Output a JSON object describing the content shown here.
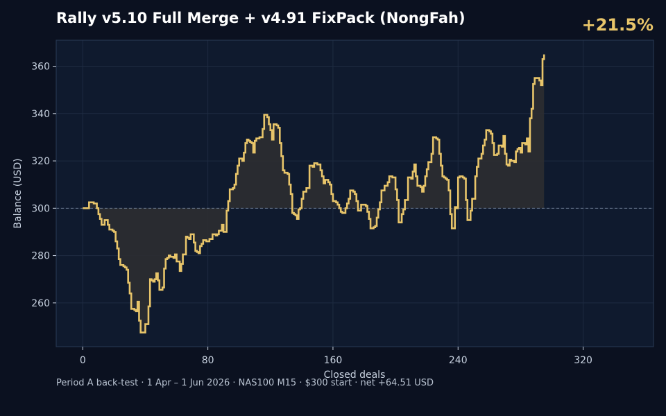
{
  "title": "Rally v5.10 Full Merge + v4.91 FixPack (NongFah)",
  "badge": "+21.5%",
  "footer": "Period A back-test  ·  1 Apr – 1 Jun 2026  ·  NAS100 M15  ·  $300 start  ·  net +64.51 USD",
  "colors": {
    "background": "#0b1120",
    "plot_background": "#0f1a2e",
    "line": "#e8c56a",
    "fill": "#2b2d31",
    "grid": "#1e2b41",
    "baseline": "#6b7a90",
    "text": "#c8d2e0"
  },
  "chart_data": {
    "type": "line",
    "step": true,
    "xlabel": "Closed deals",
    "ylabel": "Balance (USD)",
    "xlim": [
      -17,
      365
    ],
    "ylim": [
      241.5,
      371
    ],
    "xticks": [
      0,
      80,
      160,
      240,
      320
    ],
    "yticks": [
      260,
      280,
      300,
      320,
      340,
      360
    ],
    "baseline": 300,
    "grid": true,
    "series": [
      {
        "points": [
          [
            0,
            300
          ],
          [
            3,
            300
          ],
          [
            4,
            302.5
          ],
          [
            7,
            302
          ],
          [
            9,
            300
          ],
          [
            10,
            297.5
          ],
          [
            11,
            295.5
          ],
          [
            12,
            293
          ],
          [
            14,
            295
          ],
          [
            15,
            295
          ],
          [
            16,
            293
          ],
          [
            17,
            291
          ],
          [
            19,
            290.5
          ],
          [
            20,
            290
          ],
          [
            21,
            286
          ],
          [
            22,
            283
          ],
          [
            23,
            278.5
          ],
          [
            24,
            276
          ],
          [
            26,
            275.5
          ],
          [
            27,
            275
          ],
          [
            28,
            274
          ],
          [
            29,
            268.5
          ],
          [
            30,
            264
          ],
          [
            31,
            257.5
          ],
          [
            33,
            257
          ],
          [
            34,
            256.5
          ],
          [
            35,
            260.5
          ],
          [
            36,
            252.5
          ],
          [
            37,
            247.5
          ],
          [
            39,
            247.5
          ],
          [
            40,
            251
          ],
          [
            41,
            251
          ],
          [
            42,
            258.5
          ],
          [
            43,
            270
          ],
          [
            44,
            269.5
          ],
          [
            45,
            269
          ],
          [
            46,
            270
          ],
          [
            47,
            272.5
          ],
          [
            48,
            269.5
          ],
          [
            49,
            265.5
          ],
          [
            50,
            265.5
          ],
          [
            51,
            266.5
          ],
          [
            52,
            274.5
          ],
          [
            53,
            278.5
          ],
          [
            54,
            279
          ],
          [
            55,
            280
          ],
          [
            56,
            279.5
          ],
          [
            57,
            279.5
          ],
          [
            58,
            279
          ],
          [
            59,
            280.5
          ],
          [
            60,
            277.5
          ],
          [
            62,
            273.5
          ],
          [
            63,
            276.5
          ],
          [
            64,
            280.5
          ],
          [
            65,
            280.5
          ],
          [
            66,
            288
          ],
          [
            67,
            287.5
          ],
          [
            68,
            287
          ],
          [
            69,
            289
          ],
          [
            70,
            289
          ],
          [
            71,
            285.5
          ],
          [
            72,
            282
          ],
          [
            73,
            281.5
          ],
          [
            74,
            281
          ],
          [
            75,
            284
          ],
          [
            76,
            285
          ],
          [
            77,
            286.5
          ],
          [
            79,
            286
          ],
          [
            80,
            286
          ],
          [
            81,
            287
          ],
          [
            82,
            287
          ],
          [
            83,
            289
          ],
          [
            85,
            288.5
          ],
          [
            86,
            289
          ],
          [
            87,
            290.5
          ],
          [
            89,
            293
          ],
          [
            90,
            290
          ],
          [
            91,
            290
          ],
          [
            92,
            299
          ],
          [
            93,
            303
          ],
          [
            94,
            308
          ],
          [
            96,
            308.5
          ],
          [
            97,
            310
          ],
          [
            98,
            314.5
          ],
          [
            99,
            318
          ],
          [
            100,
            321
          ],
          [
            102,
            320
          ],
          [
            103,
            323.5
          ],
          [
            104,
            327.5
          ],
          [
            105,
            329
          ],
          [
            106,
            328.5
          ],
          [
            107,
            328
          ],
          [
            108,
            327.5
          ],
          [
            109,
            323.5
          ],
          [
            110,
            328.5
          ],
          [
            111,
            329.5
          ],
          [
            113,
            330
          ],
          [
            115,
            333.5
          ],
          [
            116,
            339.5
          ],
          [
            118,
            338.5
          ],
          [
            119,
            335.5
          ],
          [
            120,
            333
          ],
          [
            121,
            329
          ],
          [
            122,
            335.5
          ],
          [
            124,
            335
          ],
          [
            125,
            334
          ],
          [
            126,
            327.5
          ],
          [
            127,
            322
          ],
          [
            128,
            316
          ],
          [
            129,
            315
          ],
          [
            130,
            315
          ],
          [
            131,
            314.5
          ],
          [
            132,
            310
          ],
          [
            133,
            306
          ],
          [
            134,
            298
          ],
          [
            135,
            297.5
          ],
          [
            136,
            297
          ],
          [
            137,
            295.5
          ],
          [
            138,
            299.5
          ],
          [
            139,
            300
          ],
          [
            140,
            304
          ],
          [
            141,
            307
          ],
          [
            142,
            307
          ],
          [
            143,
            308.5
          ],
          [
            144,
            308.5
          ],
          [
            145,
            318
          ],
          [
            147,
            317.5
          ],
          [
            148,
            319
          ],
          [
            150,
            318.5
          ],
          [
            152,
            316
          ],
          [
            153,
            313.5
          ],
          [
            154,
            310.5
          ],
          [
            155,
            312
          ],
          [
            157,
            311
          ],
          [
            158,
            310
          ],
          [
            159,
            306
          ],
          [
            160,
            303
          ],
          [
            162,
            302.5
          ],
          [
            163,
            301.5
          ],
          [
            164,
            300
          ],
          [
            165,
            298.5
          ],
          [
            166,
            298
          ],
          [
            168,
            300
          ],
          [
            169,
            302
          ],
          [
            170,
            304
          ],
          [
            171,
            307.5
          ],
          [
            173,
            307
          ],
          [
            174,
            306
          ],
          [
            175,
            303
          ],
          [
            176,
            299
          ],
          [
            178,
            301.5
          ],
          [
            181,
            301
          ],
          [
            182,
            298.5
          ],
          [
            183,
            295.5
          ],
          [
            184,
            291.5
          ],
          [
            186,
            292
          ],
          [
            187,
            292.5
          ],
          [
            188,
            296
          ],
          [
            189,
            299.5
          ],
          [
            190,
            302.5
          ],
          [
            191,
            307.5
          ],
          [
            193,
            309.5
          ],
          [
            194,
            309.5
          ],
          [
            195,
            311
          ],
          [
            196,
            313.5
          ],
          [
            198,
            313
          ],
          [
            199,
            313
          ],
          [
            200,
            308
          ],
          [
            201,
            303.5
          ],
          [
            202,
            294
          ],
          [
            204,
            297.5
          ],
          [
            205,
            299.5
          ],
          [
            206,
            303.5
          ],
          [
            208,
            313
          ],
          [
            210,
            312.5
          ],
          [
            211,
            315.5
          ],
          [
            212,
            318.5
          ],
          [
            213,
            313.5
          ],
          [
            214,
            309.5
          ],
          [
            216,
            309
          ],
          [
            217,
            307
          ],
          [
            218,
            309.5
          ],
          [
            219,
            313.5
          ],
          [
            220,
            316.5
          ],
          [
            221,
            319.5
          ],
          [
            223,
            323
          ],
          [
            224,
            330
          ],
          [
            226,
            329.5
          ],
          [
            227,
            329
          ],
          [
            228,
            323
          ],
          [
            229,
            318
          ],
          [
            230,
            313.5
          ],
          [
            231,
            313
          ],
          [
            232,
            312.5
          ],
          [
            233,
            312
          ],
          [
            234,
            307.5
          ],
          [
            235,
            297.5
          ],
          [
            236,
            291.5
          ],
          [
            238,
            300.5
          ],
          [
            239,
            300
          ],
          [
            240,
            313
          ],
          [
            241,
            313.5
          ],
          [
            243,
            313
          ],
          [
            244,
            312.5
          ],
          [
            245,
            303.5
          ],
          [
            246,
            295
          ],
          [
            248,
            299
          ],
          [
            249,
            304
          ],
          [
            251,
            313.5
          ],
          [
            252,
            317.5
          ],
          [
            253,
            321
          ],
          [
            255,
            323
          ],
          [
            256,
            326.5
          ],
          [
            257,
            329
          ],
          [
            258,
            333
          ],
          [
            260,
            332.5
          ],
          [
            261,
            331.5
          ],
          [
            262,
            327.5
          ],
          [
            263,
            322.5
          ],
          [
            264,
            322.5
          ],
          [
            265,
            323
          ],
          [
            266,
            326.5
          ],
          [
            268,
            326
          ],
          [
            269,
            330.5
          ],
          [
            270,
            323
          ],
          [
            271,
            318.5
          ],
          [
            272,
            318
          ],
          [
            273,
            320.5
          ],
          [
            274,
            320
          ],
          [
            276,
            319.5
          ],
          [
            277,
            324
          ],
          [
            278,
            325
          ],
          [
            279,
            325.5
          ],
          [
            280,
            323.5
          ],
          [
            281,
            327.5
          ],
          [
            283,
            327
          ],
          [
            284,
            329.5
          ],
          [
            285,
            324
          ],
          [
            286,
            338
          ],
          [
            287,
            342
          ],
          [
            288,
            352.5
          ],
          [
            289,
            355
          ],
          [
            291,
            355
          ],
          [
            292,
            354
          ],
          [
            293,
            352
          ],
          [
            294,
            363
          ],
          [
            295,
            365
          ]
        ]
      }
    ]
  }
}
